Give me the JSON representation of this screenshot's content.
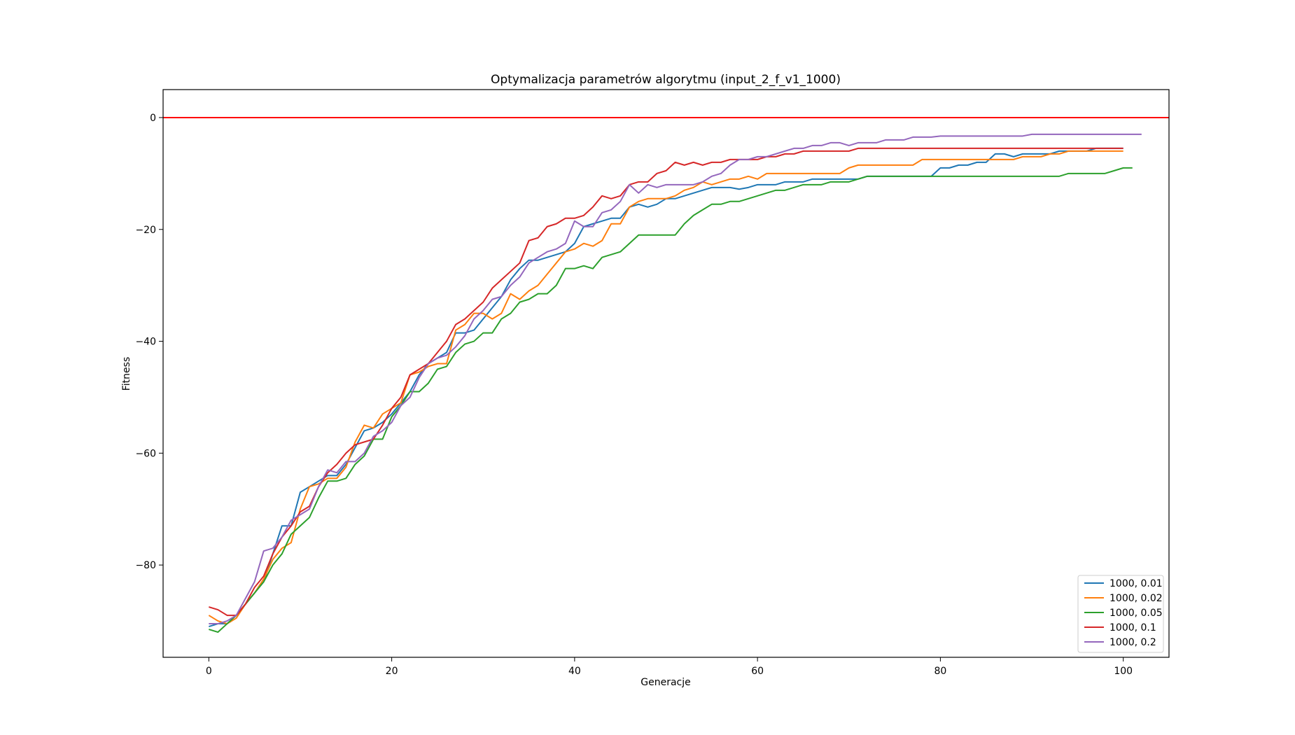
{
  "chart_data": {
    "type": "line",
    "title": "Optymalizacja parametrów algorytmu (input_2_f_v1_1000)",
    "xlabel": "Generacje",
    "ylabel": "Fitness",
    "xlim": [
      -5,
      105
    ],
    "ylim": [
      -96.5,
      5
    ],
    "xticks": [
      0,
      20,
      40,
      60,
      80,
      100
    ],
    "yticks": [
      0,
      -20,
      -40,
      -60,
      -80
    ],
    "grid": false,
    "legend_position": "lower-right",
    "reference_line": {
      "y": 0,
      "color": "#ff0000"
    },
    "series": [
      {
        "name": "1000, 0.01",
        "color": "#1f77b4",
        "values": [
          -91,
          -90.5,
          -90.5,
          -89,
          -87,
          -85,
          -83,
          -78,
          -73,
          -73,
          -67,
          -66,
          -65,
          -64,
          -64,
          -62,
          -59,
          -56,
          -55.5,
          -54.5,
          -53,
          -51,
          -49,
          -46,
          -44,
          -43,
          -42,
          -38.5,
          -38.5,
          -38,
          -36,
          -34,
          -32,
          -29,
          -27,
          -25.5,
          -25.5,
          -25,
          -24.5,
          -24,
          -22.5,
          -19.5,
          -19,
          -18.5,
          -18,
          -18,
          -16,
          -15.5,
          -16,
          -15.5,
          -14.5,
          -14.5,
          -14,
          -13.5,
          -13,
          -12.5,
          -12.5,
          -12.5,
          -12.8,
          -12.5,
          -12,
          -12,
          -12,
          -11.5,
          -11.5,
          -11.5,
          -11,
          -11,
          -11,
          -11,
          -11,
          -11,
          -10.5,
          -10.5,
          -10.5,
          -10.5,
          -10.5,
          -10.5,
          -10.5,
          -10.5,
          -9,
          -9,
          -8.5,
          -8.5,
          -8,
          -8,
          -6.5,
          -6.5,
          -7,
          -6.5,
          -6.5,
          -6.5,
          -6.5,
          -6,
          -6,
          -6,
          -6,
          -5.5,
          -5.5,
          -5.5,
          -5.5
        ]
      },
      {
        "name": "1000, 0.02",
        "color": "#ff7f0e",
        "values": [
          -89,
          -90,
          -90.5,
          -89.5,
          -87,
          -85,
          -82.5,
          -79,
          -77,
          -76,
          -70,
          -66,
          -65.5,
          -64.5,
          -64.5,
          -62.5,
          -58,
          -55,
          -55.5,
          -53,
          -52,
          -51,
          -46,
          -45.5,
          -44.5,
          -44,
          -44,
          -38,
          -37,
          -35,
          -35,
          -36,
          -35,
          -31.5,
          -32.5,
          -31,
          -30,
          -28,
          -26,
          -24,
          -23.5,
          -22.5,
          -23,
          -22,
          -19,
          -19,
          -16,
          -15,
          -14.5,
          -14.5,
          -14.5,
          -14,
          -13,
          -12.5,
          -11.5,
          -12,
          -11.5,
          -11,
          -11,
          -10.5,
          -11,
          -10,
          -10,
          -10,
          -10,
          -10,
          -10,
          -10,
          -10,
          -10,
          -9,
          -8.5,
          -8.5,
          -8.5,
          -8.5,
          -8.5,
          -8.5,
          -8.5,
          -7.5,
          -7.5,
          -7.5,
          -7.5,
          -7.5,
          -7.5,
          -7.5,
          -7.5,
          -7.5,
          -7.5,
          -7.5,
          -7,
          -7,
          -7,
          -6.5,
          -6.5,
          -6,
          -6,
          -6,
          -6,
          -6,
          -6,
          -6
        ]
      },
      {
        "name": "1000, 0.05",
        "color": "#2ca02c",
        "values": [
          -91.5,
          -92,
          -90.5,
          -89,
          -87,
          -85,
          -83,
          -80,
          -78,
          -74.5,
          -73,
          -71.5,
          -68,
          -65,
          -65,
          -64.5,
          -62,
          -60.5,
          -57.5,
          -57.5,
          -53.5,
          -51.5,
          -49,
          -49,
          -47.5,
          -45,
          -44.5,
          -42,
          -40.5,
          -40,
          -38.5,
          -38.5,
          -36,
          -35,
          -33,
          -32.5,
          -31.5,
          -31.5,
          -30,
          -27,
          -27,
          -26.5,
          -27,
          -25,
          -24.5,
          -24,
          -22.5,
          -21,
          -21,
          -21,
          -21,
          -21,
          -19,
          -17.5,
          -16.5,
          -15.5,
          -15.5,
          -15,
          -15,
          -14.5,
          -14,
          -13.5,
          -13,
          -13,
          -12.5,
          -12,
          -12,
          -12,
          -11.5,
          -11.5,
          -11.5,
          -11,
          -10.5,
          -10.5,
          -10.5,
          -10.5,
          -10.5,
          -10.5,
          -10.5,
          -10.5,
          -10.5,
          -10.5,
          -10.5,
          -10.5,
          -10.5,
          -10.5,
          -10.5,
          -10.5,
          -10.5,
          -10.5,
          -10.5,
          -10.5,
          -10.5,
          -10.5,
          -10,
          -10,
          -10,
          -10,
          -10,
          -9.5,
          -9,
          -9
        ]
      },
      {
        "name": "1000, 0.1",
        "color": "#d62728",
        "values": [
          -87.5,
          -88,
          -89,
          -89,
          -87,
          -84,
          -82,
          -78,
          -75,
          -73,
          -70.5,
          -69.5,
          -66,
          -63.5,
          -62,
          -60,
          -58.5,
          -58,
          -57.5,
          -55,
          -52,
          -50,
          -46,
          -45,
          -44,
          -42,
          -40,
          -37,
          -36,
          -34.5,
          -33,
          -30.5,
          -29,
          -27.5,
          -26,
          -22,
          -21.5,
          -19.5,
          -19,
          -18,
          -18,
          -17.5,
          -16,
          -14,
          -14.5,
          -14,
          -12,
          -11.5,
          -11.5,
          -10,
          -9.5,
          -8,
          -8.5,
          -8,
          -8.5,
          -8,
          -8,
          -7.5,
          -7.5,
          -7.5,
          -7.5,
          -7,
          -7,
          -6.5,
          -6.5,
          -6,
          -6,
          -6,
          -6,
          -6,
          -6,
          -5.5,
          -5.5,
          -5.5,
          -5.5,
          -5.5,
          -5.5,
          -5.5,
          -5.5,
          -5.5,
          -5.5,
          -5.5,
          -5.5,
          -5.5,
          -5.5,
          -5.5,
          -5.5,
          -5.5,
          -5.5,
          -5.5,
          -5.5,
          -5.5,
          -5.5,
          -5.5,
          -5.5,
          -5.5,
          -5.5,
          -5.5,
          -5.5,
          -5.5,
          -5.5
        ]
      },
      {
        "name": "1000, 0.2",
        "color": "#9467bd",
        "values": [
          -90.5,
          -90.5,
          -90,
          -89,
          -86,
          -83,
          -77.5,
          -77,
          -75,
          -72,
          -71,
          -70,
          -66,
          -63,
          -63.5,
          -61.5,
          -61.5,
          -60,
          -57,
          -56,
          -54.5,
          -51.5,
          -50,
          -46.5,
          -44,
          -43,
          -42.5,
          -41,
          -39,
          -36,
          -34.5,
          -32.5,
          -32,
          -30,
          -28.5,
          -26,
          -25,
          -24,
          -23.5,
          -22.5,
          -18.5,
          -19.5,
          -19.5,
          -17,
          -16.5,
          -15,
          -12,
          -13.5,
          -12,
          -12.5,
          -12,
          -12,
          -12,
          -12,
          -11.5,
          -10.5,
          -10,
          -8.5,
          -7.5,
          -7.5,
          -7,
          -7,
          -6.5,
          -6,
          -5.5,
          -5.5,
          -5,
          -5,
          -4.5,
          -4.5,
          -5,
          -4.5,
          -4.5,
          -4.5,
          -4,
          -4,
          -4,
          -3.5,
          -3.5,
          -3.5,
          -3.3,
          -3.3,
          -3.3,
          -3.3,
          -3.3,
          -3.3,
          -3.3,
          -3.3,
          -3.3,
          -3.3,
          -3,
          -3,
          -3,
          -3,
          -3,
          -3,
          -3,
          -3,
          -3,
          -3,
          -3,
          -3,
          -3
        ]
      }
    ]
  }
}
